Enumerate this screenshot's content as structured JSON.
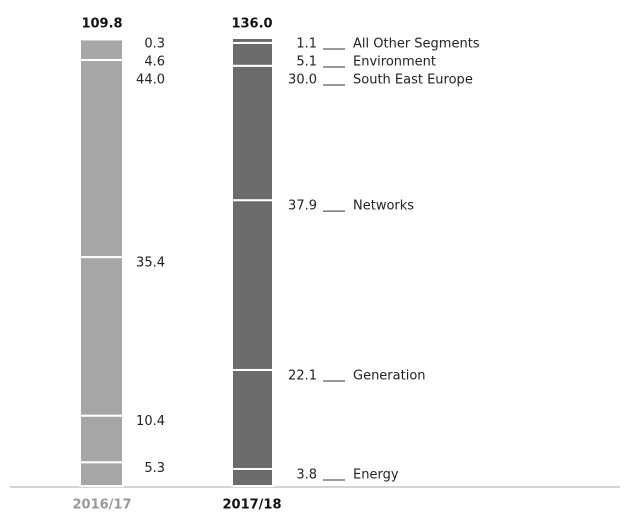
{
  "chart_data": {
    "type": "stacked-bar",
    "categories": [
      "2016/17",
      "2017/18"
    ],
    "colors": [
      "#a6a6a6",
      "#6b6b6b"
    ],
    "totals": [
      {
        "value": 109.8,
        "label": "109.8"
      },
      {
        "value": 136,
        "label": "136.0"
      }
    ],
    "ylim": [
      0,
      100
    ],
    "series": [
      {
        "name": "Energy",
        "values": [
          5.3,
          3.8
        ],
        "value_labels": [
          "5.3",
          "3.8"
        ]
      },
      {
        "name": "Generation",
        "values": [
          10.4,
          22.1
        ],
        "value_labels": [
          "10.4",
          "22.1"
        ]
      },
      {
        "name": "Networks",
        "values": [
          35.4,
          37.9
        ],
        "value_labels": [
          "35.4",
          "37.9"
        ]
      },
      {
        "name": "South East Europe",
        "values": [
          44,
          30
        ],
        "value_labels": [
          "44.0",
          "30.0"
        ]
      },
      {
        "name": "Environment",
        "values": [
          4.6,
          5.1
        ],
        "value_labels": [
          "4.6",
          "5.1"
        ]
      },
      {
        "name": "All Other Segments",
        "values": [
          0.3,
          1.1
        ],
        "value_labels": [
          "0.3",
          "1.1"
        ]
      }
    ]
  }
}
